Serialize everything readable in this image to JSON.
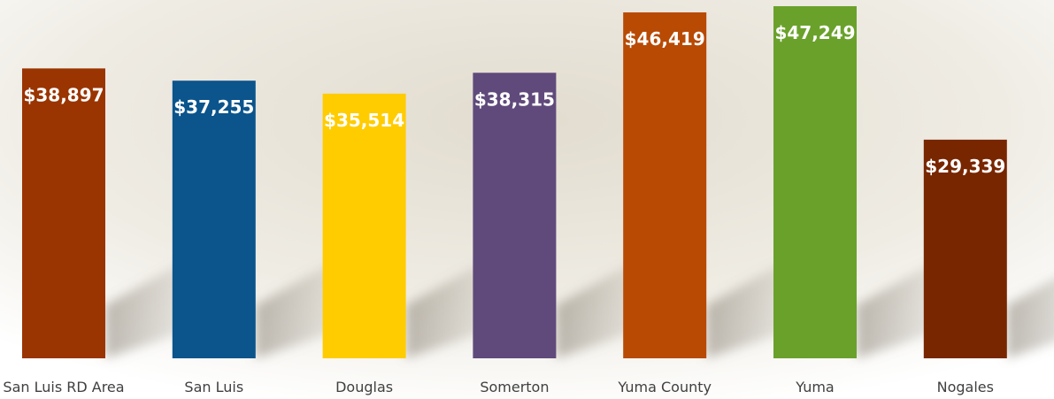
{
  "chart_data": {
    "type": "bar",
    "categories": [
      "San Luis RD Area",
      "San Luis",
      "Douglas",
      "Somerton",
      "Yuma County",
      "Yuma",
      "Nogales"
    ],
    "values": [
      38897,
      37255,
      35514,
      38315,
      46419,
      47249,
      29339
    ],
    "value_labels": [
      "$38,897",
      "$37,255",
      "$35,514",
      "$38,315",
      "$46,419",
      "$47,249",
      "$29,339"
    ],
    "colors": [
      "#9a3400",
      "#0b548c",
      "#ffcc00",
      "#604a7b",
      "#b84a04",
      "#6aa12b",
      "#782600"
    ]
  }
}
